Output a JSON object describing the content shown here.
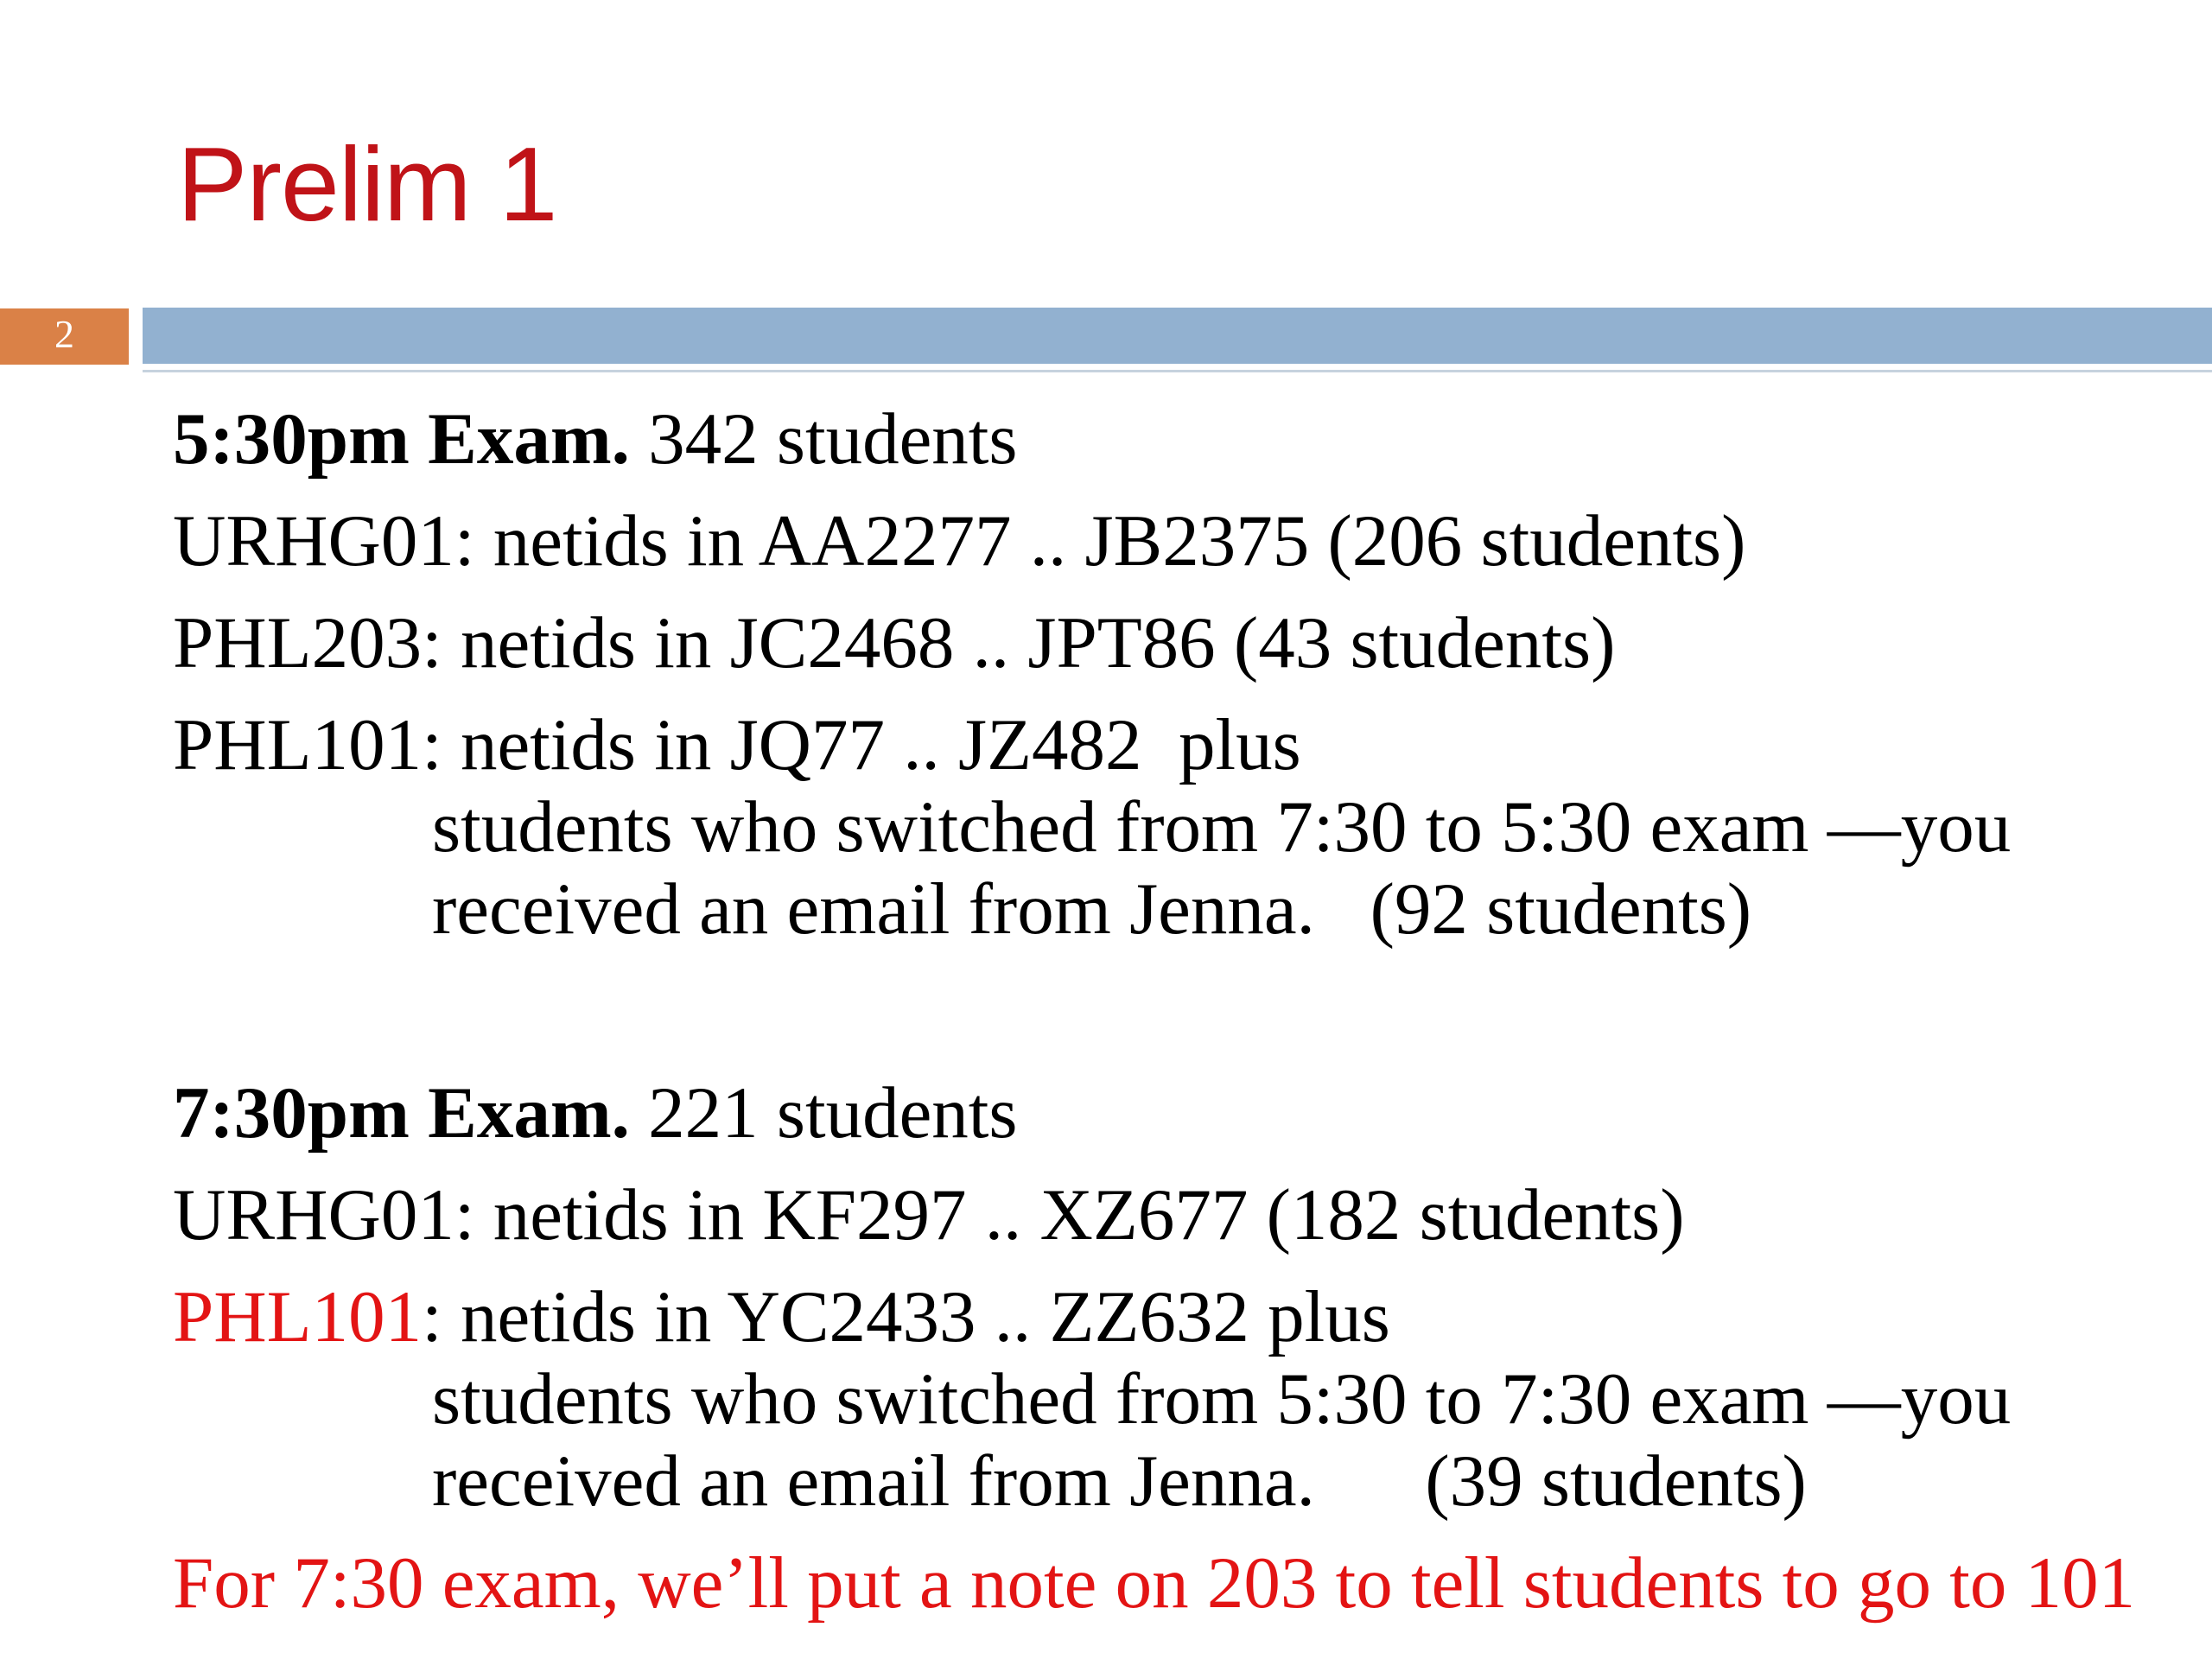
{
  "title": "Prelim 1",
  "page_number": "2",
  "colors": {
    "title_red": "#C01318",
    "red": "#E31414",
    "orange": "#DA8147",
    "band_blue": "#92B1D0",
    "rule_blue": "#C6D2DE",
    "page_number_white": "#FFFFFF",
    "body_black": "#000000"
  },
  "body": {
    "paragraphs": [
      {
        "lines": [
          {
            "indent": 0,
            "runs": [
              {
                "text": "5:30pm Exam.",
                "bold": true
              },
              {
                "text": " 342 students"
              }
            ]
          }
        ]
      },
      {
        "lines": [
          {
            "indent": 0,
            "runs": [
              {
                "text": "URHG01: netids in AA2277 .. JB2375 (206 students)"
              }
            ]
          }
        ]
      },
      {
        "lines": [
          {
            "indent": 0,
            "runs": [
              {
                "text": "PHL203: netids in JC2468 .. JPT86 (43 students)"
              }
            ]
          }
        ]
      },
      {
        "lines": [
          {
            "indent": 0,
            "runs": [
              {
                "text": "PHL101: netids in JQ77 .. JZ482  plus"
              }
            ]
          },
          {
            "indent": 1,
            "runs": [
              {
                "text": "students who switched from 7:30 to 5:30 exam —you"
              }
            ]
          },
          {
            "indent": 1,
            "runs": [
              {
                "text": "received an email from Jenna.   (92 students)"
              }
            ]
          }
        ]
      },
      {
        "blank": true,
        "lines": []
      },
      {
        "lines": [
          {
            "indent": 0,
            "runs": [
              {
                "text": "7:30pm Exam.",
                "bold": true
              },
              {
                "text": " 221 students"
              }
            ]
          }
        ]
      },
      {
        "lines": [
          {
            "indent": 0,
            "runs": [
              {
                "text": "URHG01: netids in KF297 .. XZ677 (182 students)"
              }
            ]
          }
        ]
      },
      {
        "lines": [
          {
            "indent": 0,
            "runs": [
              {
                "text": "PHL101",
                "color": "red"
              },
              {
                "text": ": netids in YC2433 .. ZZ632 plus"
              }
            ]
          },
          {
            "indent": 1,
            "runs": [
              {
                "text": "students who switched from 5:30 to 7:30 exam —you"
              }
            ]
          },
          {
            "indent": 1,
            "runs": [
              {
                "text": "received an email from Jenna.      (39 students)"
              }
            ]
          }
        ]
      },
      {
        "final": true,
        "lines": [
          {
            "indent": 0,
            "runs": [
              {
                "text": "For 7:30 exam, we’ll put a note on 203 to tell students to go to 101",
                "color": "red"
              }
            ]
          }
        ]
      }
    ]
  }
}
